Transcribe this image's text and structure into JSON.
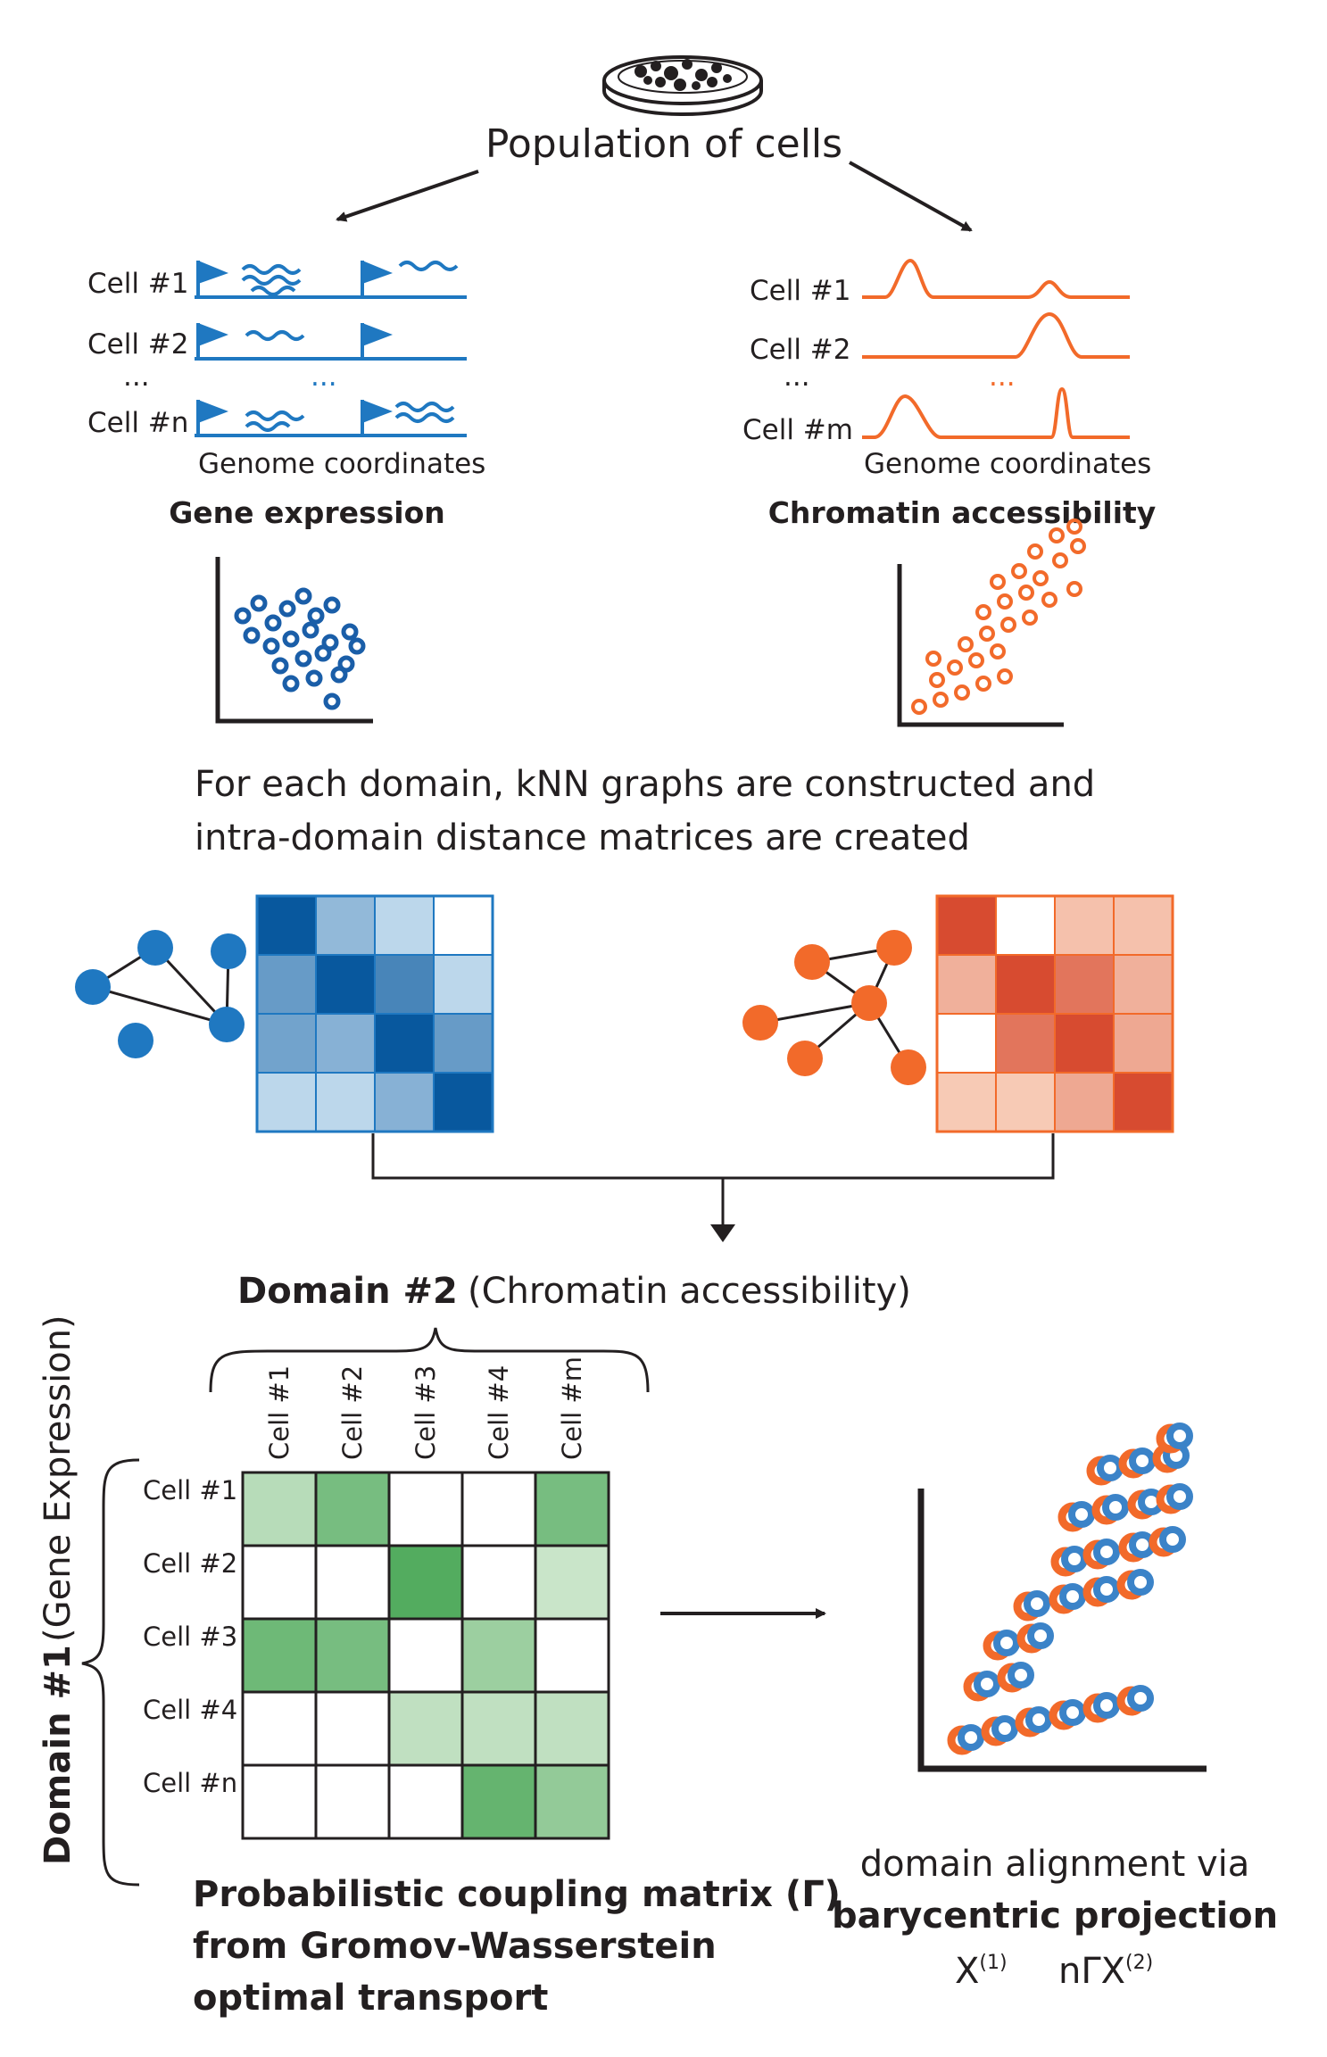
{
  "top": {
    "title": "Population of cells"
  },
  "expression": {
    "cell_labels": [
      "Cell #1",
      "Cell #2",
      "...",
      "Cell #n"
    ],
    "middle_dots": "...",
    "axis_label": "Genome coordinates",
    "title": "Gene expression",
    "color": "#1f78c1",
    "dot_color": "#1a5ea8"
  },
  "accessibility": {
    "cell_labels": [
      "Cell #1",
      "Cell #2",
      "...",
      "Cell #m"
    ],
    "middle_dots": "...",
    "axis_label": "Genome coordinates",
    "title": "Chromatin accessibility",
    "color": "#f26a2a"
  },
  "knn": {
    "caption_line1": "For each domain, kNN graphs are constructed and",
    "caption_line2": "intra-domain distance matrices are created",
    "blue_matrix": [
      [
        1.0,
        0.35,
        0.15,
        0.0
      ],
      [
        0.55,
        1.0,
        0.7,
        0.15
      ],
      [
        0.5,
        0.4,
        1.0,
        0.55
      ],
      [
        0.15,
        0.15,
        0.4,
        1.0
      ]
    ],
    "orange_matrix": [
      [
        0.9,
        0.0,
        0.2,
        0.2
      ],
      [
        0.3,
        0.9,
        0.65,
        0.3
      ],
      [
        0.0,
        0.65,
        0.9,
        0.35
      ],
      [
        0.15,
        0.15,
        0.35,
        0.9
      ]
    ]
  },
  "coupling": {
    "domain2_title": "Domain #2",
    "domain2_sub": "(Chromatin accessibility)",
    "domain1_title": "Domain #1",
    "domain1_sub": "(Gene Expression)",
    "col_labels": [
      "Cell #1",
      "Cell #2",
      "Cell #3",
      "Cell #4",
      "Cell #m"
    ],
    "row_labels": [
      "Cell #1",
      "Cell #2",
      "Cell #3",
      "Cell #4",
      "Cell #n"
    ],
    "matrix": [
      [
        0.25,
        0.6,
        0.0,
        0.0,
        0.6
      ],
      [
        0.0,
        0.0,
        0.8,
        0.0,
        0.15
      ],
      [
        0.65,
        0.6,
        0.0,
        0.4,
        0.0
      ],
      [
        0.0,
        0.0,
        0.2,
        0.2,
        0.2
      ],
      [
        0.0,
        0.0,
        0.0,
        0.7,
        0.45
      ]
    ],
    "caption_line1": "Probabilistic coupling matrix (Γ)",
    "caption_line2": "from Gromov-Wasserstein",
    "caption_line3": "optimal transport"
  },
  "alignment": {
    "caption_line1": "domain alignment via",
    "caption_line2": "barycentric projection",
    "x_base": "X",
    "x_sup": "(1)",
    "ngx_base": "nΓX",
    "ngx_sup": "(2)"
  }
}
